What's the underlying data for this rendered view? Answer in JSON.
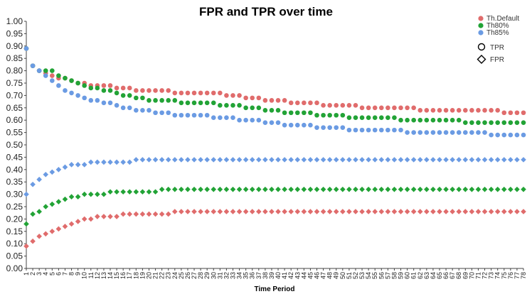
{
  "chart_data": {
    "type": "scatter",
    "title": "FPR and TPR over time",
    "xlabel": "Time Period",
    "ylabel": "",
    "ylim": [
      0,
      1
    ],
    "yticks": [
      "0.00",
      "0.05",
      "0.10",
      "0.15",
      "0.20",
      "0.25",
      "0.30",
      "0.35",
      "0.40",
      "0.45",
      "0.50",
      "0.55",
      "0.60",
      "0.65",
      "0.70",
      "0.75",
      "0.80",
      "0.85",
      "0.90",
      "0.95",
      "1.00"
    ],
    "x_start": 1,
    "x_end": 78,
    "grid": false,
    "legend_position": "top-right",
    "legend": [
      "Th.Default",
      "Th80%",
      "Th85%"
    ],
    "marker_legend": [
      "TPR",
      "FPR"
    ],
    "colors": {
      "Th.Default": "#e06c6c",
      "Th80%": "#22a336",
      "Th85%": "#6b9be3"
    },
    "marker_shapes": {
      "TPR": "circle",
      "FPR": "diamond"
    },
    "series": [
      {
        "name": "Th.Default",
        "metric": "TPR",
        "values": [
          0.89,
          0.82,
          0.8,
          0.79,
          0.78,
          0.77,
          0.77,
          0.76,
          0.75,
          0.75,
          0.74,
          0.74,
          0.74,
          0.74,
          0.73,
          0.73,
          0.73,
          0.72,
          0.72,
          0.72,
          0.72,
          0.72,
          0.72,
          0.71,
          0.71,
          0.71,
          0.71,
          0.71,
          0.71,
          0.71,
          0.71,
          0.7,
          0.7,
          0.7,
          0.69,
          0.69,
          0.69,
          0.68,
          0.68,
          0.68,
          0.68,
          0.67,
          0.67,
          0.67,
          0.67,
          0.67,
          0.66,
          0.66,
          0.66,
          0.66,
          0.66,
          0.66,
          0.65,
          0.65,
          0.65,
          0.65,
          0.65,
          0.65,
          0.65,
          0.65,
          0.65,
          0.64,
          0.64,
          0.64,
          0.64,
          0.64,
          0.64,
          0.64,
          0.64,
          0.64,
          0.64,
          0.64,
          0.64,
          0.64,
          0.63,
          0.63,
          0.63,
          0.63
        ]
      },
      {
        "name": "Th80%",
        "metric": "TPR",
        "values": [
          0.89,
          0.82,
          0.8,
          0.8,
          0.8,
          0.78,
          0.77,
          0.76,
          0.75,
          0.74,
          0.73,
          0.73,
          0.72,
          0.72,
          0.71,
          0.7,
          0.7,
          0.69,
          0.69,
          0.68,
          0.68,
          0.68,
          0.68,
          0.68,
          0.67,
          0.67,
          0.67,
          0.67,
          0.67,
          0.67,
          0.66,
          0.66,
          0.66,
          0.66,
          0.65,
          0.65,
          0.65,
          0.64,
          0.64,
          0.64,
          0.63,
          0.63,
          0.63,
          0.63,
          0.63,
          0.62,
          0.62,
          0.62,
          0.62,
          0.62,
          0.61,
          0.61,
          0.61,
          0.61,
          0.61,
          0.61,
          0.61,
          0.61,
          0.6,
          0.6,
          0.6,
          0.6,
          0.6,
          0.6,
          0.6,
          0.6,
          0.6,
          0.6,
          0.59,
          0.59,
          0.59,
          0.59,
          0.59,
          0.59,
          0.59,
          0.59,
          0.59,
          0.59
        ]
      },
      {
        "name": "Th85%",
        "metric": "TPR",
        "values": [
          0.89,
          0.82,
          0.8,
          0.78,
          0.76,
          0.74,
          0.72,
          0.71,
          0.7,
          0.69,
          0.68,
          0.68,
          0.67,
          0.67,
          0.66,
          0.65,
          0.65,
          0.64,
          0.64,
          0.64,
          0.63,
          0.63,
          0.63,
          0.62,
          0.62,
          0.62,
          0.62,
          0.62,
          0.62,
          0.61,
          0.61,
          0.61,
          0.61,
          0.6,
          0.6,
          0.6,
          0.6,
          0.59,
          0.59,
          0.59,
          0.58,
          0.58,
          0.58,
          0.58,
          0.58,
          0.57,
          0.57,
          0.57,
          0.57,
          0.57,
          0.56,
          0.56,
          0.56,
          0.56,
          0.56,
          0.56,
          0.56,
          0.56,
          0.56,
          0.55,
          0.55,
          0.55,
          0.55,
          0.55,
          0.55,
          0.55,
          0.55,
          0.55,
          0.55,
          0.55,
          0.55,
          0.55,
          0.54,
          0.54,
          0.54,
          0.54,
          0.54,
          0.54
        ]
      },
      {
        "name": "Th.Default",
        "metric": "FPR",
        "values": [
          0.09,
          0.11,
          0.13,
          0.14,
          0.15,
          0.16,
          0.17,
          0.18,
          0.19,
          0.2,
          0.2,
          0.21,
          0.21,
          0.21,
          0.21,
          0.22,
          0.22,
          0.22,
          0.22,
          0.22,
          0.22,
          0.22,
          0.22,
          0.23,
          0.23,
          0.23,
          0.23,
          0.23,
          0.23,
          0.23,
          0.23,
          0.23,
          0.23,
          0.23,
          0.23,
          0.23,
          0.23,
          0.23,
          0.23,
          0.23,
          0.23,
          0.23,
          0.23,
          0.23,
          0.23,
          0.23,
          0.23,
          0.23,
          0.23,
          0.23,
          0.23,
          0.23,
          0.23,
          0.23,
          0.23,
          0.23,
          0.23,
          0.23,
          0.23,
          0.23,
          0.23,
          0.23,
          0.23,
          0.23,
          0.23,
          0.23,
          0.23,
          0.23,
          0.23,
          0.23,
          0.23,
          0.23,
          0.23,
          0.23,
          0.23,
          0.23,
          0.23,
          0.23
        ]
      },
      {
        "name": "Th80%",
        "metric": "FPR",
        "values": [
          0.18,
          0.22,
          0.23,
          0.25,
          0.26,
          0.27,
          0.28,
          0.29,
          0.29,
          0.3,
          0.3,
          0.3,
          0.3,
          0.31,
          0.31,
          0.31,
          0.31,
          0.31,
          0.31,
          0.31,
          0.31,
          0.32,
          0.32,
          0.32,
          0.32,
          0.32,
          0.32,
          0.32,
          0.32,
          0.32,
          0.32,
          0.32,
          0.32,
          0.32,
          0.32,
          0.32,
          0.32,
          0.32,
          0.32,
          0.32,
          0.32,
          0.32,
          0.32,
          0.32,
          0.32,
          0.32,
          0.32,
          0.32,
          0.32,
          0.32,
          0.32,
          0.32,
          0.32,
          0.32,
          0.32,
          0.32,
          0.32,
          0.32,
          0.32,
          0.32,
          0.32,
          0.32,
          0.32,
          0.32,
          0.32,
          0.32,
          0.32,
          0.32,
          0.32,
          0.32,
          0.32,
          0.32,
          0.32,
          0.32,
          0.32,
          0.32,
          0.32,
          0.32
        ]
      },
      {
        "name": "Th85%",
        "metric": "FPR",
        "values": [
          0.3,
          0.34,
          0.36,
          0.38,
          0.39,
          0.4,
          0.41,
          0.42,
          0.42,
          0.42,
          0.43,
          0.43,
          0.43,
          0.43,
          0.43,
          0.43,
          0.43,
          0.44,
          0.44,
          0.44,
          0.44,
          0.44,
          0.44,
          0.44,
          0.44,
          0.44,
          0.44,
          0.44,
          0.44,
          0.44,
          0.44,
          0.44,
          0.44,
          0.44,
          0.44,
          0.44,
          0.44,
          0.44,
          0.44,
          0.44,
          0.44,
          0.44,
          0.44,
          0.44,
          0.44,
          0.44,
          0.44,
          0.44,
          0.44,
          0.44,
          0.44,
          0.44,
          0.44,
          0.44,
          0.44,
          0.44,
          0.44,
          0.44,
          0.44,
          0.44,
          0.44,
          0.44,
          0.44,
          0.44,
          0.44,
          0.44,
          0.44,
          0.44,
          0.44,
          0.44,
          0.44,
          0.44,
          0.44,
          0.44,
          0.44,
          0.44,
          0.44,
          0.44
        ]
      }
    ]
  }
}
